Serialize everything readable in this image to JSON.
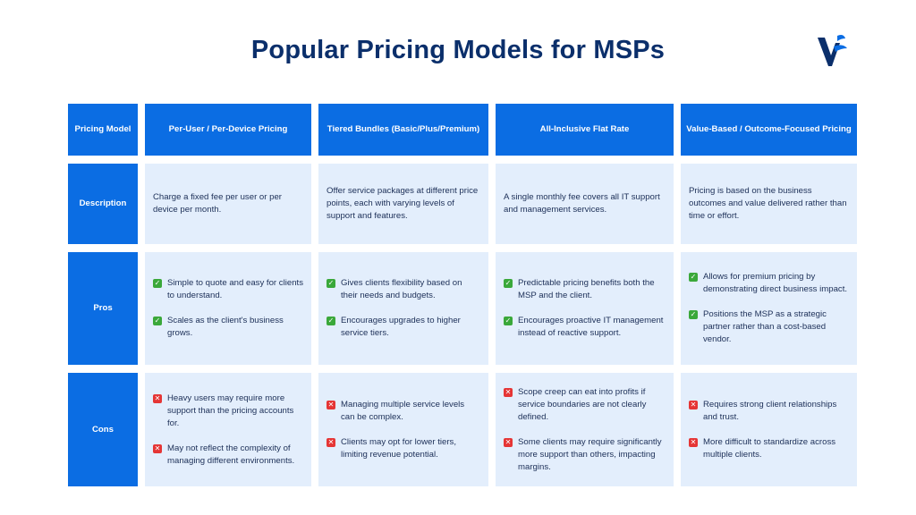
{
  "title": "Popular Pricing Models for MSPs",
  "colors": {
    "header_bg": "#0b6de3",
    "cell_bg": "#e3eefc",
    "title": "#0b2f6b",
    "check": "#3aa83a",
    "cross": "#e53535"
  },
  "icons": {
    "logo": "brand-logo-icon",
    "pro": "check-mark-icon",
    "con": "cross-mark-icon"
  },
  "table": {
    "corner": "Pricing Model",
    "columns": [
      "Per-User / Per-Device Pricing",
      "Tiered Bundles (Basic/Plus/Premium)",
      "All-Inclusive Flat Rate",
      "Value-Based / Outcome-Focused Pricing"
    ],
    "row_labels": {
      "description": "Description",
      "pros": "Pros",
      "cons": "Cons"
    },
    "description": [
      "Charge a fixed fee per user or per device per month.",
      "Offer service packages at different price points, each with varying levels of support and features.",
      "A single monthly fee covers all IT support and management services.",
      "Pricing is based on the business outcomes and value delivered rather than time or effort."
    ],
    "pros": [
      [
        "Simple to quote and easy for clients to understand.",
        "Scales as the client's business grows."
      ],
      [
        "Gives clients flexibility based on their needs and budgets.",
        "Encourages upgrades to higher service tiers."
      ],
      [
        "Predictable pricing benefits both the MSP and the client.",
        "Encourages proactive IT management instead of reactive support."
      ],
      [
        "Allows for premium pricing by demonstrating direct business impact.",
        "Positions the MSP as a strategic partner rather than a cost-based vendor."
      ]
    ],
    "cons": [
      [
        "Heavy users may require more support than the pricing accounts for.",
        "May not reflect the complexity of managing different environments."
      ],
      [
        "Managing multiple service levels can be complex.",
        "Clients may opt for lower tiers, limiting revenue potential."
      ],
      [
        "Scope creep can eat into profits if service boundaries are not clearly defined.",
        "Some clients may require significantly more support than others, impacting margins."
      ],
      [
        "Requires strong client relationships and trust.",
        "More difficult to standardize across multiple clients."
      ]
    ]
  }
}
